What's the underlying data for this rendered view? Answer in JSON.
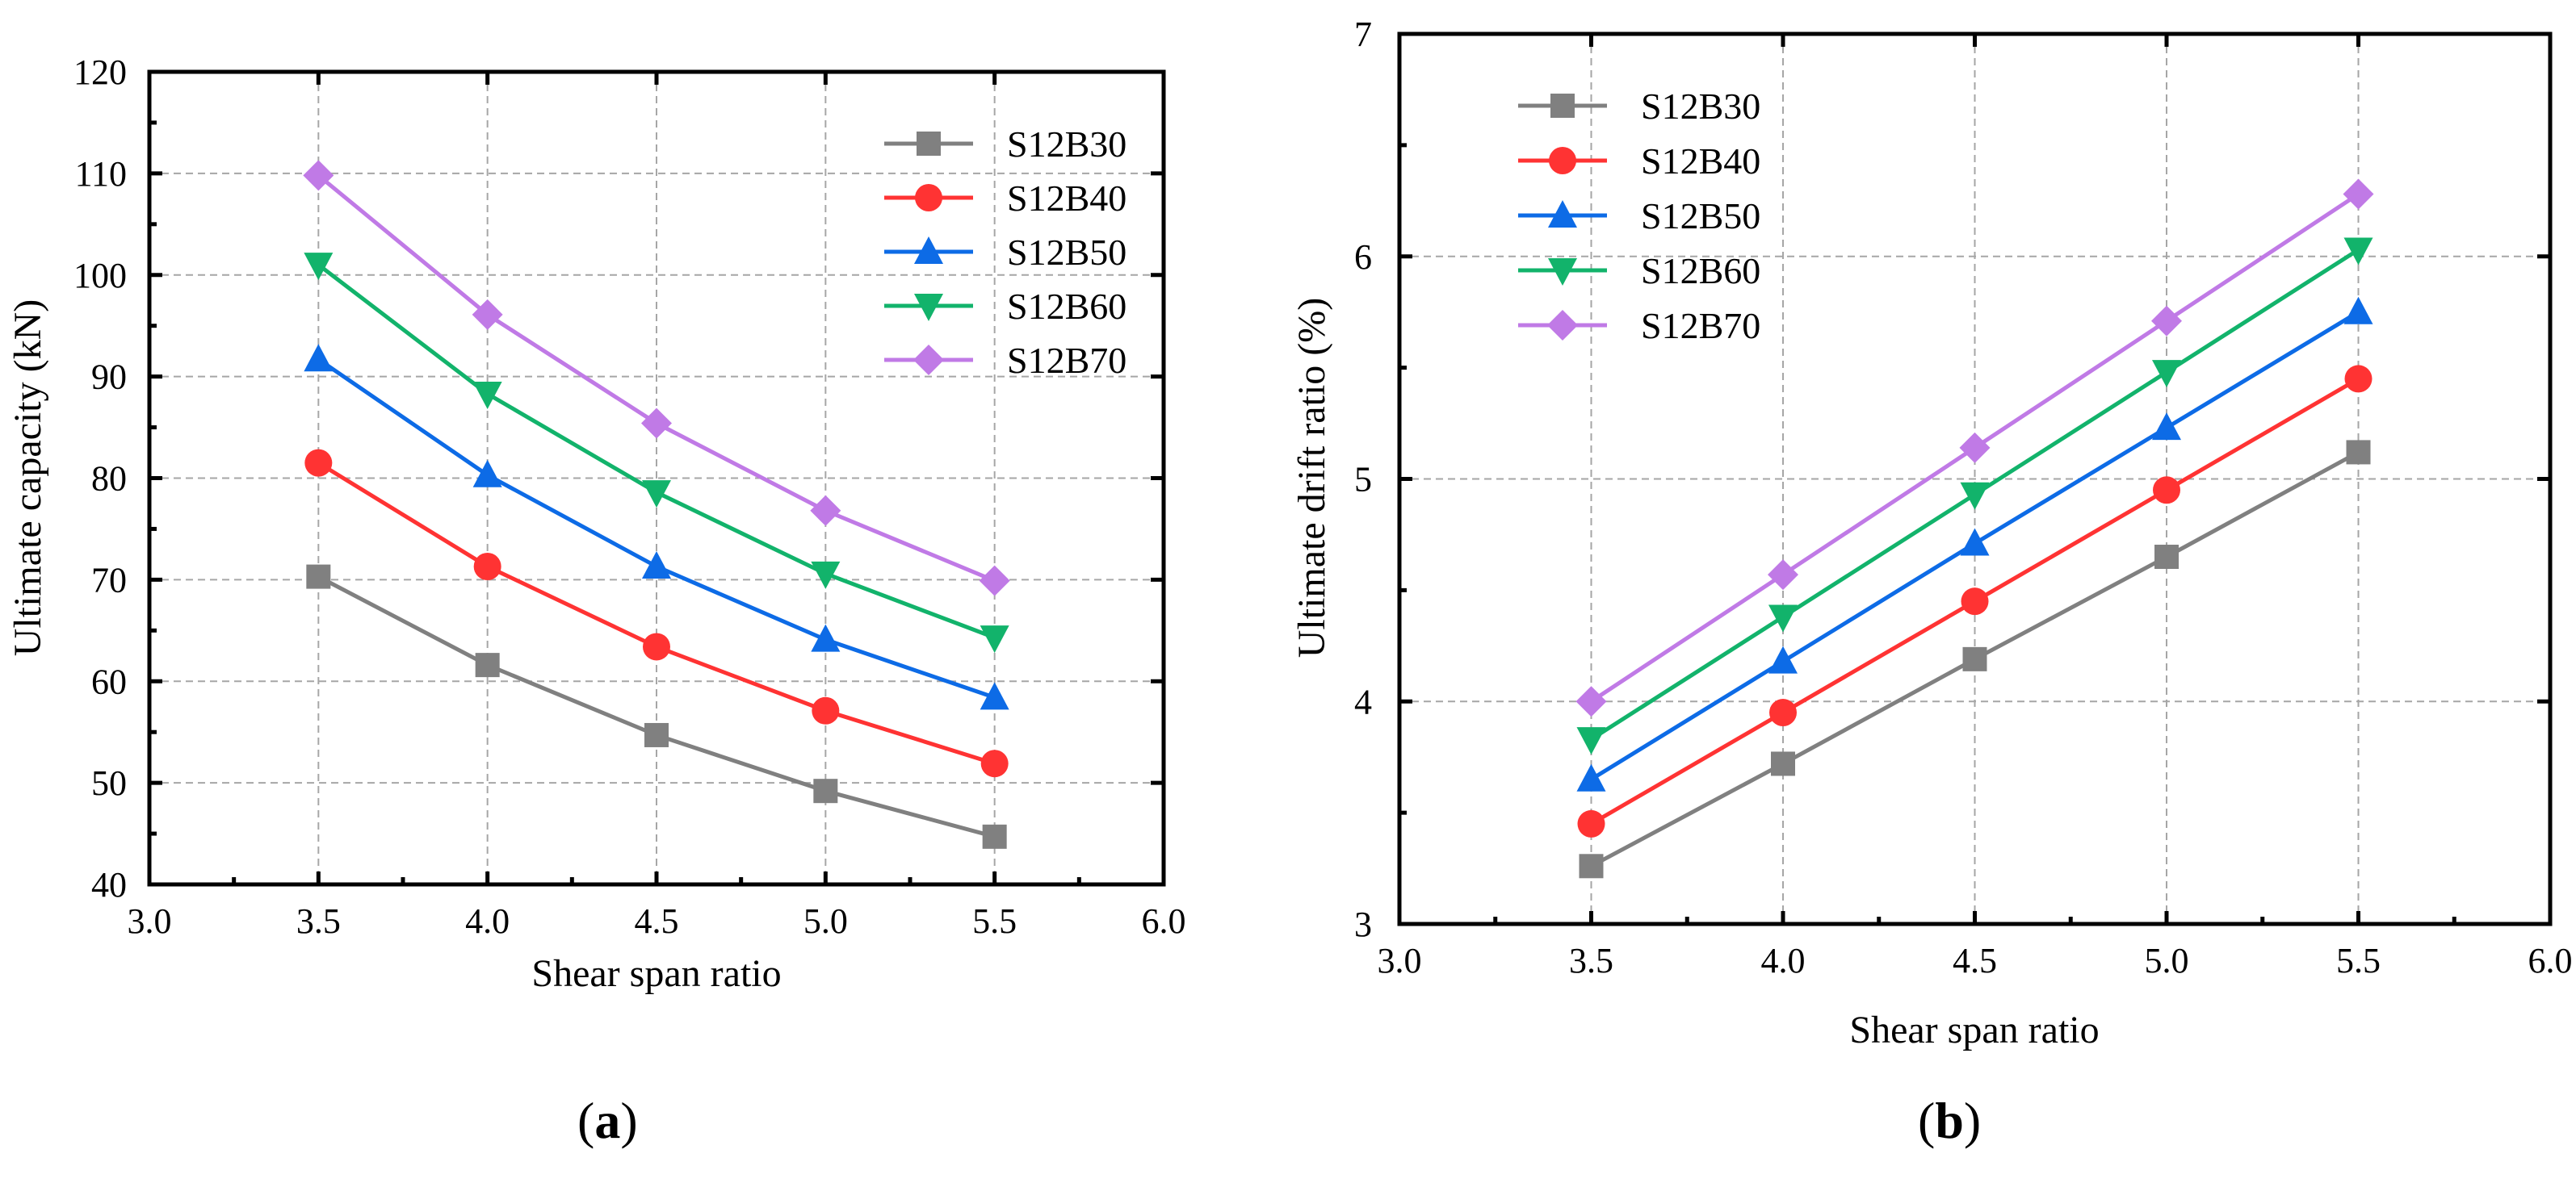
{
  "colors": {
    "S12B30": "#808080",
    "S12B40": "#ff3333",
    "S12B50": "#0d6be6",
    "S12B60": "#12b36b",
    "S12B70": "#c07ae6",
    "grid": "#a6a6a6",
    "axis": "#000000"
  },
  "markers": {
    "S12B30": "square",
    "S12B40": "circle",
    "S12B50": "triangle-up",
    "S12B60": "triangle-down",
    "S12B70": "diamond"
  },
  "chart_data": [
    {
      "type": "line",
      "panel_label": "a",
      "xlabel": "Shear span ratio",
      "ylabel": "Ultimate capacity (kN)",
      "xlim": [
        3.0,
        6.0
      ],
      "ylim": [
        40,
        120
      ],
      "xticks": [
        "3.0",
        "3.5",
        "4.0",
        "4.5",
        "5.0",
        "5.5",
        "6.0"
      ],
      "yticks": [
        "40",
        "50",
        "60",
        "70",
        "80",
        "90",
        "100",
        "110",
        "120"
      ],
      "grid": true,
      "legend_position": "top-right",
      "x": [
        3.5,
        4.0,
        4.5,
        5.0,
        5.5
      ],
      "series": [
        {
          "name": "S12B30",
          "values": [
            70.3,
            61.6,
            54.7,
            49.2,
            44.7
          ]
        },
        {
          "name": "S12B40",
          "values": [
            81.5,
            71.3,
            63.4,
            57.1,
            51.9
          ]
        },
        {
          "name": "S12B50",
          "values": [
            91.7,
            80.3,
            71.3,
            64.1,
            58.4
          ]
        },
        {
          "name": "S12B60",
          "values": [
            101.0,
            88.3,
            78.6,
            70.6,
            64.3
          ]
        },
        {
          "name": "S12B70",
          "values": [
            109.8,
            96.1,
            85.4,
            76.8,
            69.9
          ]
        }
      ]
    },
    {
      "type": "line",
      "panel_label": "b",
      "xlabel": "Shear span ratio",
      "ylabel": "Ultimate drift ratio (%)",
      "xlim": [
        3.0,
        6.0
      ],
      "ylim": [
        3,
        7
      ],
      "xticks": [
        "3.0",
        "3.5",
        "4.0",
        "4.5",
        "5.0",
        "5.5",
        "6.0"
      ],
      "yticks": [
        "3",
        "4",
        "5",
        "6",
        "7"
      ],
      "grid": true,
      "legend_position": "top-left",
      "x": [
        3.5,
        4.0,
        4.5,
        5.0,
        5.5
      ],
      "series": [
        {
          "name": "S12B30",
          "values": [
            3.26,
            3.72,
            4.19,
            4.65,
            5.12
          ]
        },
        {
          "name": "S12B40",
          "values": [
            3.45,
            3.95,
            4.45,
            4.95,
            5.45
          ]
        },
        {
          "name": "S12B50",
          "values": [
            3.65,
            4.18,
            4.71,
            5.23,
            5.75
          ]
        },
        {
          "name": "S12B60",
          "values": [
            3.83,
            4.38,
            4.93,
            5.48,
            6.03
          ]
        },
        {
          "name": "S12B70",
          "values": [
            4.0,
            4.57,
            5.14,
            5.71,
            6.28
          ]
        }
      ]
    }
  ]
}
